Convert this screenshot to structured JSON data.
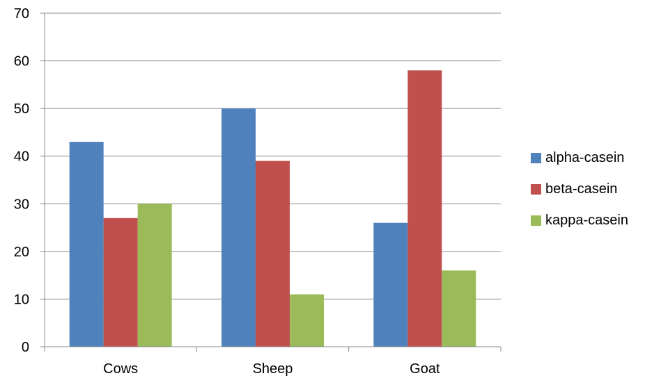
{
  "chart_data": {
    "type": "bar",
    "categories": [
      "Cows",
      "Sheep",
      "Goat"
    ],
    "series": [
      {
        "name": "alpha-casein",
        "values": [
          43,
          50,
          26
        ],
        "color": "#4f81bd"
      },
      {
        "name": "beta-casein",
        "values": [
          27,
          39,
          58
        ],
        "color": "#c0504d"
      },
      {
        "name": "kappa-casein",
        "values": [
          30,
          11,
          16
        ],
        "color": "#9bbb59"
      }
    ],
    "title": "",
    "xlabel": "",
    "ylabel": "",
    "ylim": [
      0,
      70
    ],
    "yticks": [
      0,
      10,
      20,
      30,
      40,
      50,
      60,
      70
    ],
    "grid": true,
    "legend_position": "right"
  }
}
